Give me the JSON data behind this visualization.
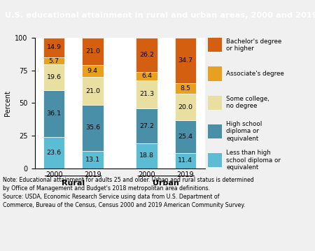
{
  "title": "U.S. educational attainment in rural and urban areas, 2000 and 2019",
  "title_bg_color": "#1a3a5c",
  "title_text_color": "#ffffff",
  "ylabel": "Percent",
  "ylim": [
    0,
    100
  ],
  "year_labels": [
    "2000",
    "2019",
    "2000",
    "2019"
  ],
  "group_labels": [
    "Rural",
    "Urban"
  ],
  "legend_labels": [
    "Bachelor's degree\nor higher",
    "Associate's degree",
    "Some college,\nno degree",
    "High school\ndiploma or\nequivalent",
    "Less than high\nschool diploma or\nequivalent"
  ],
  "colors": [
    "#5bbcd4",
    "#4a8fa8",
    "#e8dfa0",
    "#e8a020",
    "#d45f10"
  ],
  "values": [
    [
      23.6,
      36.1,
      19.6,
      5.7,
      14.9
    ],
    [
      13.1,
      35.6,
      21.0,
      9.4,
      21.0
    ],
    [
      18.8,
      27.2,
      21.3,
      6.4,
      26.2
    ],
    [
      11.4,
      25.4,
      20.0,
      8.5,
      34.7
    ]
  ],
  "note": "Note: Educational attainment for adults 25 and older. Urban and rural status is determined\nby Office of Management and Budget's 2018 metropolitan area definitions.\nSource: USDA, Economic Research Service using data from U.S. Department of\nCommerce, Bureau of the Census, Census 2000 and 2019 American Community Survey.",
  "bg_color": "#f0f0f0",
  "plot_bg_color": "#ffffff"
}
